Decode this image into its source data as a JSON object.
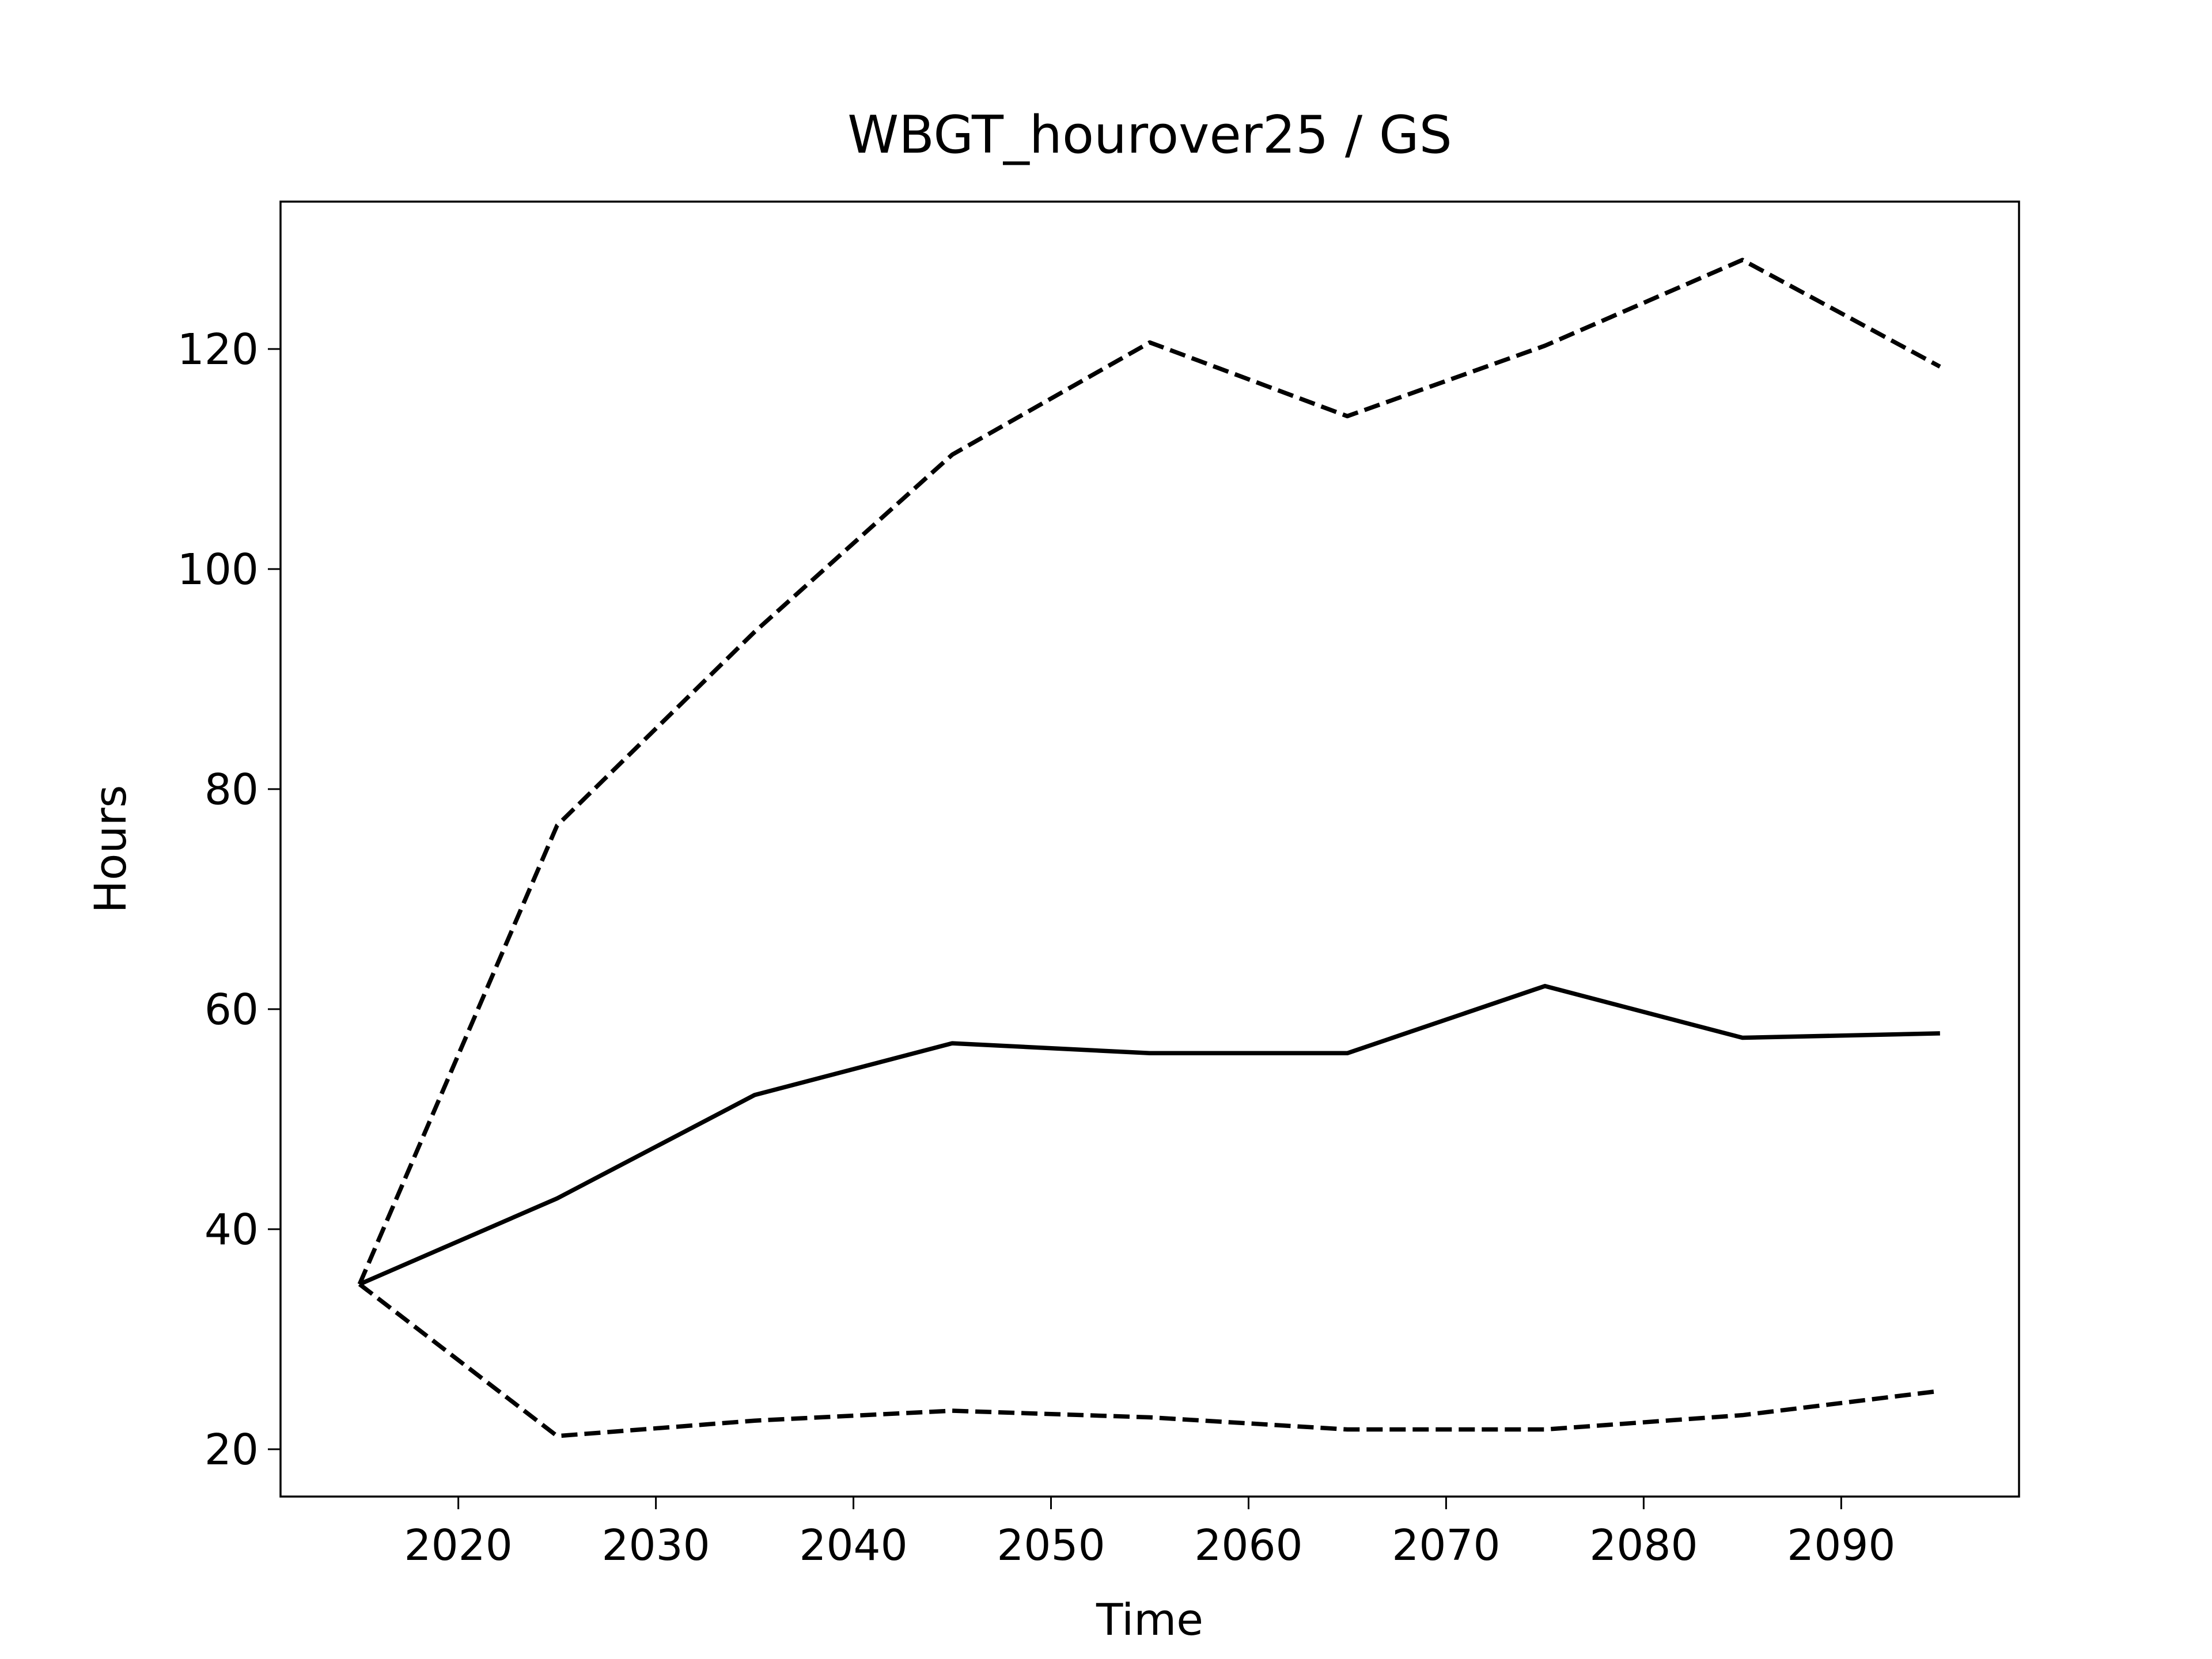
{
  "chart_data": {
    "type": "line",
    "title": "WBGT_hourover25 / GS",
    "xlabel": "Time",
    "ylabel": "Hours",
    "x": [
      2015,
      2025,
      2035,
      2045,
      2055,
      2065,
      2075,
      2085,
      2095
    ],
    "series": [
      {
        "color": "#000000",
        "linestyle": "solid",
        "values": [
          35,
          42.8,
          52.2,
          56.9,
          56.0,
          56.0,
          62.1,
          57.4,
          57.8
        ]
      },
      {
        "color": "#000000",
        "linestyle": "dashed",
        "values": [
          35,
          76.7,
          94.3,
          110.4,
          120.6,
          113.9,
          120.3,
          128.1,
          118.4
        ]
      },
      {
        "color": "#000000",
        "linestyle": "dashed",
        "values": [
          35,
          21.2,
          22.6,
          23.5,
          22.9,
          21.8,
          21.8,
          23.1,
          25.3
        ]
      }
    ],
    "xlim": [
      2011,
      2099
    ],
    "xticks": [
      2020,
      2030,
      2040,
      2050,
      2060,
      2070,
      2080,
      2090
    ],
    "ylim": [
      15.7,
      133.4
    ],
    "yticks": [
      20,
      40,
      60,
      80,
      100,
      120
    ],
    "grid": false
  }
}
